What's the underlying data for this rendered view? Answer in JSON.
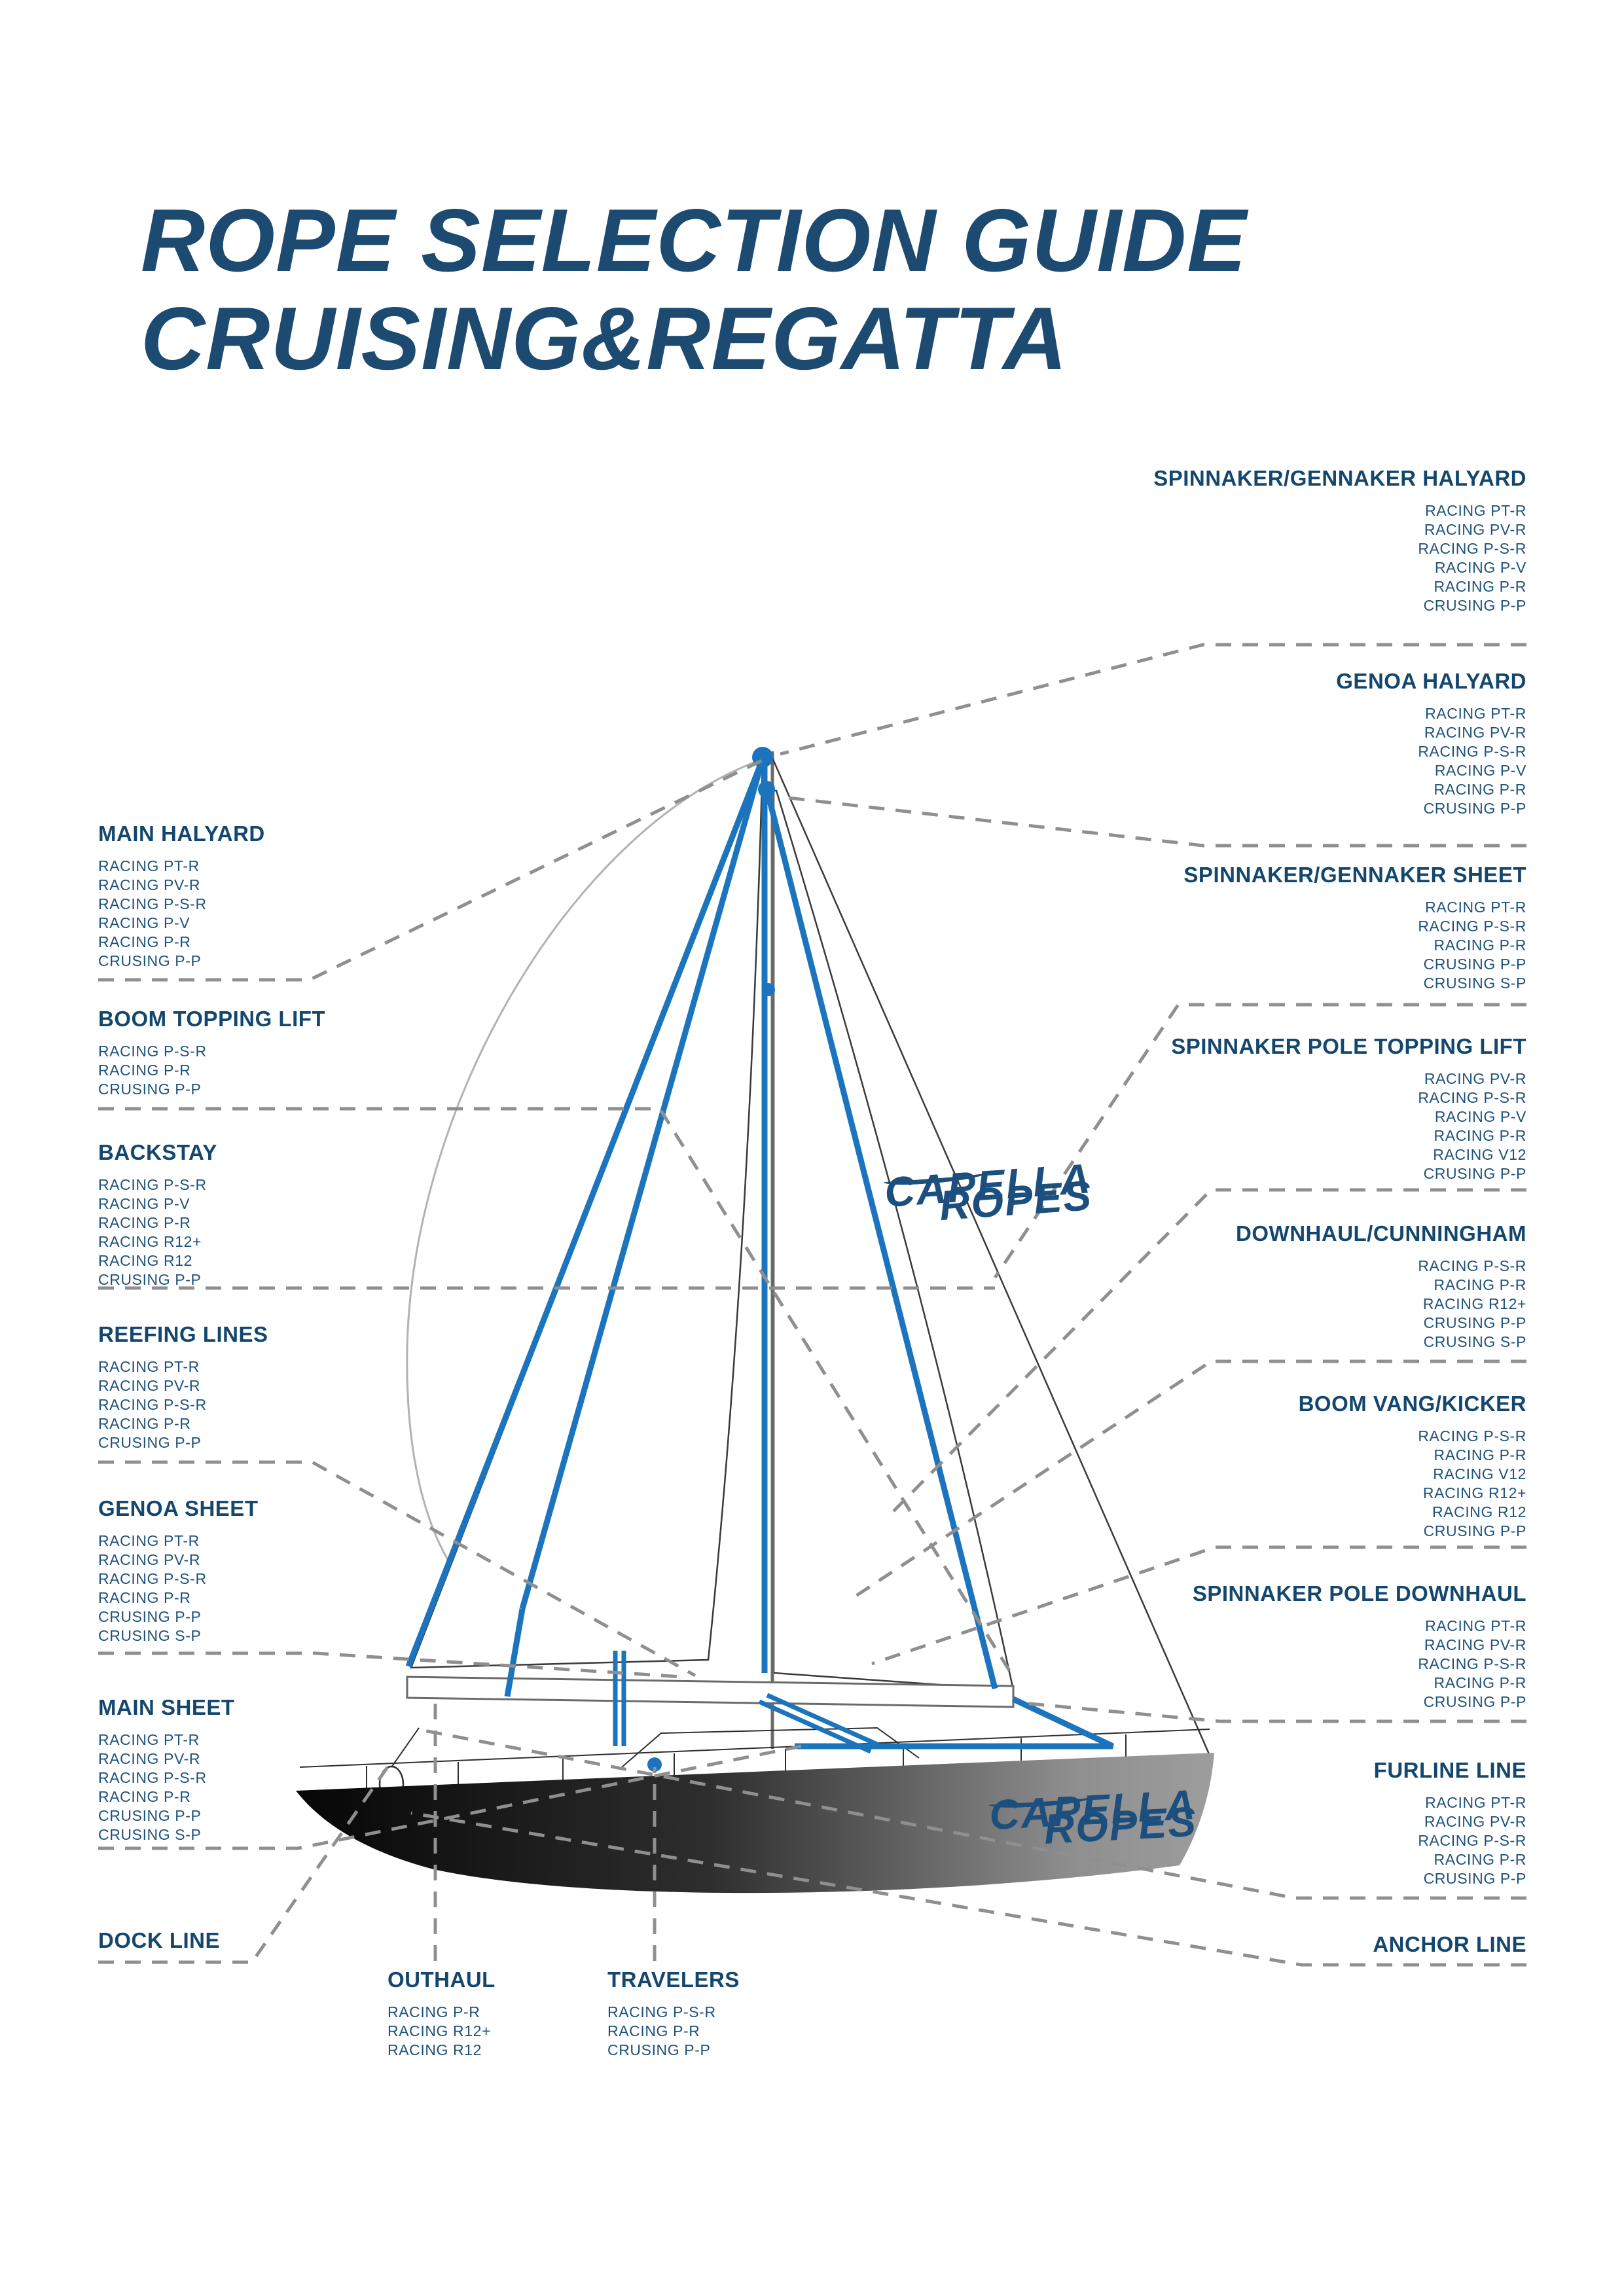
{
  "page_title": {
    "line1": "ROPE SELECTION GUIDE",
    "line2": "CRUISING&REGATTA"
  },
  "brand": {
    "line1": "CAPELLA",
    "line2": "ROPES"
  },
  "colors": {
    "title_navy": "#1c4a70",
    "label_navy": "#14476e",
    "rope_text": "#1e517b",
    "rope_blue": "#1b74bd",
    "leader_gray": "#8f8f8f"
  },
  "labels": {
    "left": [
      {
        "id": "main-halyard",
        "title": "MAIN HALYARD",
        "ropes": [
          "RACING PT-R",
          "RACING PV-R",
          "RACING P-S-R",
          "RACING P-V",
          "RACING P-R",
          "CRUSING P-P"
        ]
      },
      {
        "id": "boom-topping-lift",
        "title": "BOOM TOPPING LIFT",
        "ropes": [
          "RACING P-S-R",
          "RACING P-R",
          "CRUSING P-P"
        ]
      },
      {
        "id": "backstay",
        "title": "BACKSTAY",
        "ropes": [
          "RACING P-S-R",
          "RACING P-V",
          "RACING P-R",
          "RACING R12+",
          "RACING R12",
          "CRUSING P-P"
        ]
      },
      {
        "id": "reefing-lines",
        "title": "REEFING LINES",
        "ropes": [
          "RACING PT-R",
          "RACING PV-R",
          "RACING P-S-R",
          "RACING P-R",
          "CRUSING P-P"
        ]
      },
      {
        "id": "genoa-sheet",
        "title": "GENOA SHEET",
        "ropes": [
          "RACING PT-R",
          "RACING PV-R",
          "RACING P-S-R",
          "RACING P-R",
          "CRUSING P-P",
          "CRUSING S-P"
        ]
      },
      {
        "id": "main-sheet",
        "title": "MAIN SHEET",
        "ropes": [
          "RACING PT-R",
          "RACING PV-R",
          "RACING P-S-R",
          "RACING P-R",
          "CRUSING P-P",
          "CRUSING S-P"
        ]
      },
      {
        "id": "dock-line",
        "title": "DOCK LINE",
        "ropes": []
      }
    ],
    "right": [
      {
        "id": "spinnaker-gennaker-halyard",
        "title": "SPINNAKER/GENNAKER HALYARD",
        "ropes": [
          "RACING PT-R",
          "RACING PV-R",
          "RACING P-S-R",
          "RACING P-V",
          "RACING P-R",
          "CRUSING P-P"
        ]
      },
      {
        "id": "genoa-halyard",
        "title": "GENOA HALYARD",
        "ropes": [
          "RACING PT-R",
          "RACING PV-R",
          "RACING P-S-R",
          "RACING P-V",
          "RACING P-R",
          "CRUSING P-P"
        ]
      },
      {
        "id": "spinnaker-gennaker-sheet",
        "title": "SPINNAKER/GENNAKER SHEET",
        "ropes": [
          "RACING PT-R",
          "RACING P-S-R",
          "RACING P-R",
          "CRUSING P-P",
          "CRUSING S-P"
        ]
      },
      {
        "id": "spinnaker-pole-topping-lift",
        "title": "SPINNAKER POLE TOPPING LIFT",
        "ropes": [
          "RACING PV-R",
          "RACING P-S-R",
          "RACING P-V",
          "RACING P-R",
          "RACING V12",
          "CRUSING P-P"
        ]
      },
      {
        "id": "downhaul-cunningham",
        "title": "DOWNHAUL/CUNNINGHAM",
        "ropes": [
          "RACING P-S-R",
          "RACING P-R",
          "RACING R12+",
          "CRUSING P-P",
          "CRUSING S-P"
        ]
      },
      {
        "id": "boom-vang-kicker",
        "title": "BOOM VANG/KICKER",
        "ropes": [
          "RACING P-S-R",
          "RACING P-R",
          "RACING V12",
          "RACING R12+",
          "RACING R12",
          "CRUSING P-P"
        ]
      },
      {
        "id": "spinnaker-pole-downhaul",
        "title": "SPINNAKER POLE DOWNHAUL",
        "ropes": [
          "RACING PT-R",
          "RACING PV-R",
          "RACING P-S-R",
          "RACING P-R",
          "CRUSING P-P"
        ]
      },
      {
        "id": "furline-line",
        "title": "FURLINE LINE",
        "ropes": [
          "RACING PT-R",
          "RACING PV-R",
          "RACING P-S-R",
          "RACING P-R",
          "CRUSING P-P"
        ]
      },
      {
        "id": "anchor-line",
        "title": "ANCHOR LINE",
        "ropes": []
      }
    ],
    "bottom": [
      {
        "id": "outhaul",
        "title": "OUTHAUL",
        "ropes": [
          "RACING P-R",
          "RACING R12+",
          "RACING R12"
        ]
      },
      {
        "id": "travelers",
        "title": "TRAVELERS",
        "ropes": [
          "RACING P-S-R",
          "RACING P-R",
          "CRUSING P-P"
        ]
      }
    ]
  }
}
